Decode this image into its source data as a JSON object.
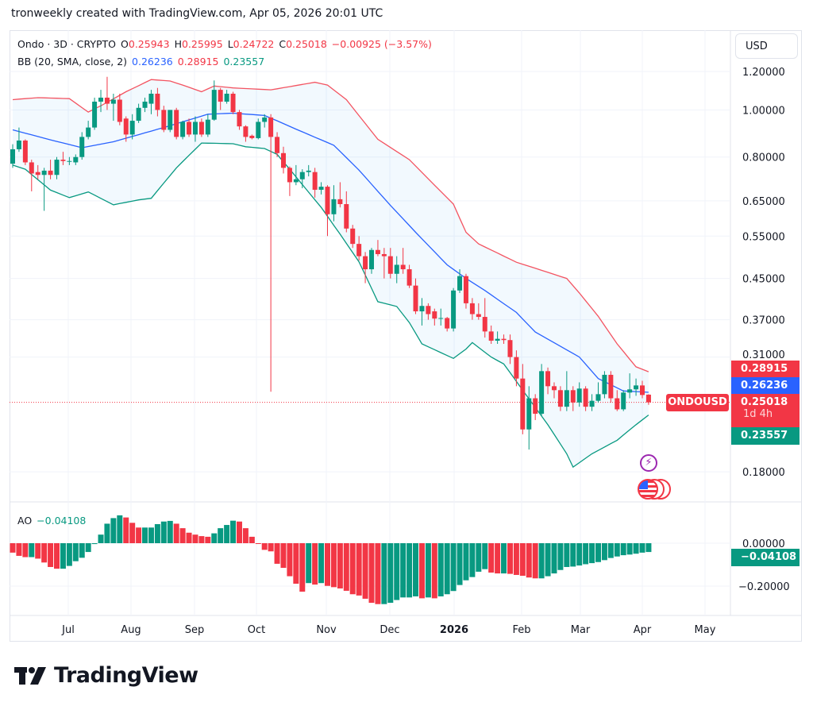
{
  "credit": "tronweekly created with TradingView.com, Apr 05, 2026 20:01 UTC",
  "legend": {
    "symbol": "Ondo · 3D · CRYPTO",
    "o_label": "O",
    "o": "0.25943",
    "h_label": "H",
    "h": "0.25995",
    "l_label": "L",
    "l": "0.24722",
    "c_label": "C",
    "c": "0.25018",
    "change": "−0.00925 (−3.57%)",
    "bb_label": "BB (20, SMA, close, 2)",
    "bb_basis": "0.26236",
    "bb_upper": "0.28915",
    "bb_lower": "0.23557",
    "ao_label": "AO",
    "ao_value": "−0.04108"
  },
  "currency_button": "USD",
  "symbol_label": "ONDOUSD",
  "badges": {
    "upper": "0.28915",
    "basis": "0.26236",
    "last": "0.25018",
    "countdown": "1d 4h",
    "lower": "0.23557",
    "ao": "−0.04108"
  },
  "icons": [
    "lightning-event-icon",
    "us-flag-event-icon"
  ],
  "colors": {
    "up": "#089981",
    "down": "#f23645",
    "bb_basis": "#2962ff",
    "bb_upper": "#f23645",
    "bb_lower": "#089981",
    "ao_up": "#089981",
    "ao_down": "#f23645"
  },
  "logo_text": "TradingView",
  "chart_data": [
    {
      "type": "candlestick",
      "title": "Ondo · 3D · CRYPTO",
      "y_scale": "log",
      "y_ticks": [
        "1.20000",
        "1.00000",
        "0.80000",
        "0.65000",
        "0.55000",
        "0.45000",
        "0.37000",
        "0.31000",
        "0.18000"
      ],
      "x_ticks": [
        "Jul",
        "Aug",
        "Sep",
        "Oct",
        "Nov",
        "Dec",
        "2026",
        "Feb",
        "Mar",
        "Apr",
        "May"
      ],
      "grid": true,
      "last_price": 0.25018,
      "ohlc": [
        [
          0.775,
          0.85,
          0.76,
          0.83
        ],
        [
          0.83,
          0.92,
          0.82,
          0.865
        ],
        [
          0.865,
          0.87,
          0.77,
          0.78
        ],
        [
          0.78,
          0.79,
          0.68,
          0.74
        ],
        [
          0.745,
          0.77,
          0.72,
          0.735
        ],
        [
          0.735,
          0.76,
          0.62,
          0.75
        ],
        [
          0.75,
          0.79,
          0.72,
          0.735
        ],
        [
          0.735,
          0.8,
          0.72,
          0.79
        ],
        [
          0.79,
          0.82,
          0.77,
          0.785
        ],
        [
          0.785,
          0.8,
          0.77,
          0.785
        ],
        [
          0.78,
          0.81,
          0.77,
          0.8
        ],
        [
          0.8,
          0.9,
          0.79,
          0.88
        ],
        [
          0.88,
          0.95,
          0.87,
          0.92
        ],
        [
          0.92,
          1.06,
          0.91,
          1.04
        ],
        [
          1.04,
          1.1,
          0.99,
          1.06
        ],
        [
          1.06,
          1.17,
          1.0,
          1.03
        ],
        [
          1.03,
          1.08,
          0.95,
          1.05
        ],
        [
          1.05,
          1.08,
          0.93,
          0.945
        ],
        [
          0.96,
          0.97,
          0.86,
          0.89
        ],
        [
          0.89,
          0.98,
          0.87,
          0.95
        ],
        [
          0.95,
          1.03,
          0.94,
          1.01
        ],
        [
          1.01,
          1.06,
          0.99,
          1.04
        ],
        [
          1.03,
          1.1,
          0.98,
          1.08
        ],
        [
          1.08,
          1.11,
          0.97,
          1.0
        ],
        [
          1.0,
          1.02,
          0.9,
          0.91
        ],
        [
          0.91,
          1.0,
          0.9,
          1.0
        ],
        [
          1.0,
          1.01,
          0.87,
          0.88
        ],
        [
          0.88,
          0.95,
          0.87,
          0.945
        ],
        [
          0.945,
          0.96,
          0.88,
          0.89
        ],
        [
          0.89,
          0.97,
          0.86,
          0.945
        ],
        [
          0.945,
          0.96,
          0.88,
          0.89
        ],
        [
          0.89,
          0.98,
          0.88,
          0.955
        ],
        [
          0.955,
          1.15,
          0.95,
          1.1
        ],
        [
          1.1,
          1.11,
          1.0,
          1.04
        ],
        [
          1.04,
          1.1,
          1.03,
          1.08
        ],
        [
          1.08,
          1.09,
          0.98,
          0.99
        ],
        [
          0.99,
          1.0,
          0.91,
          0.925
        ],
        [
          0.925,
          0.93,
          0.86,
          0.88
        ],
        [
          0.885,
          0.89,
          0.87,
          0.875
        ],
        [
          0.875,
          0.96,
          0.87,
          0.945
        ],
        [
          0.945,
          0.98,
          0.92,
          0.965
        ],
        [
          0.965,
          0.98,
          0.263,
          0.88
        ],
        [
          0.88,
          0.9,
          0.8,
          0.815
        ],
        [
          0.815,
          0.84,
          0.74,
          0.76
        ],
        [
          0.76,
          0.765,
          0.665,
          0.71
        ],
        [
          0.71,
          0.77,
          0.7,
          0.72
        ],
        [
          0.72,
          0.755,
          0.69,
          0.745
        ],
        [
          0.745,
          0.77,
          0.73,
          0.75
        ],
        [
          0.745,
          0.76,
          0.66,
          0.685
        ],
        [
          0.685,
          0.71,
          0.67,
          0.695
        ],
        [
          0.695,
          0.7,
          0.55,
          0.61
        ],
        [
          0.61,
          0.7,
          0.59,
          0.655
        ],
        [
          0.655,
          0.71,
          0.63,
          0.64
        ],
        [
          0.64,
          0.68,
          0.56,
          0.57
        ],
        [
          0.57,
          0.58,
          0.52,
          0.53
        ],
        [
          0.53,
          0.55,
          0.49,
          0.5
        ],
        [
          0.5,
          0.51,
          0.44,
          0.47
        ],
        [
          0.47,
          0.52,
          0.46,
          0.515
        ],
        [
          0.515,
          0.54,
          0.5,
          0.505
        ],
        [
          0.505,
          0.52,
          0.45,
          0.5
        ],
        [
          0.5,
          0.52,
          0.45,
          0.46
        ],
        [
          0.46,
          0.5,
          0.44,
          0.48
        ],
        [
          0.48,
          0.52,
          0.46,
          0.47
        ],
        [
          0.47,
          0.48,
          0.43,
          0.435
        ],
        [
          0.435,
          0.45,
          0.38,
          0.385
        ],
        [
          0.385,
          0.41,
          0.36,
          0.395
        ],
        [
          0.395,
          0.4,
          0.37,
          0.38
        ],
        [
          0.385,
          0.39,
          0.36,
          0.372
        ],
        [
          0.372,
          0.39,
          0.36,
          0.373
        ],
        [
          0.373,
          0.375,
          0.35,
          0.355
        ],
        [
          0.355,
          0.43,
          0.35,
          0.425
        ],
        [
          0.425,
          0.47,
          0.42,
          0.455
        ],
        [
          0.455,
          0.46,
          0.39,
          0.4
        ],
        [
          0.4,
          0.41,
          0.37,
          0.38
        ],
        [
          0.38,
          0.4,
          0.37,
          0.375
        ],
        [
          0.375,
          0.41,
          0.34,
          0.35
        ],
        [
          0.35,
          0.36,
          0.33,
          0.335
        ],
        [
          0.335,
          0.35,
          0.33,
          0.338
        ],
        [
          0.338,
          0.345,
          0.33,
          0.336
        ],
        [
          0.336,
          0.345,
          0.3,
          0.31
        ],
        [
          0.31,
          0.32,
          0.27,
          0.28
        ],
        [
          0.28,
          0.3,
          0.215,
          0.22
        ],
        [
          0.22,
          0.27,
          0.2,
          0.255
        ],
        [
          0.255,
          0.26,
          0.23,
          0.237
        ],
        [
          0.237,
          0.3,
          0.235,
          0.29
        ],
        [
          0.29,
          0.295,
          0.26,
          0.27
        ],
        [
          0.27,
          0.275,
          0.255,
          0.265
        ],
        [
          0.265,
          0.27,
          0.24,
          0.245
        ],
        [
          0.245,
          0.29,
          0.24,
          0.265
        ],
        [
          0.265,
          0.27,
          0.24,
          0.25
        ],
        [
          0.25,
          0.275,
          0.245,
          0.267
        ],
        [
          0.267,
          0.27,
          0.24,
          0.245
        ],
        [
          0.245,
          0.26,
          0.24,
          0.252
        ],
        [
          0.252,
          0.275,
          0.25,
          0.26
        ],
        [
          0.26,
          0.29,
          0.255,
          0.285
        ],
        [
          0.285,
          0.29,
          0.25,
          0.255
        ],
        [
          0.255,
          0.265,
          0.24,
          0.242
        ],
        [
          0.242,
          0.265,
          0.24,
          0.262
        ],
        [
          0.262,
          0.287,
          0.255,
          0.266
        ],
        [
          0.266,
          0.28,
          0.258,
          0.271
        ],
        [
          0.271,
          0.277,
          0.255,
          0.259
        ],
        [
          0.25943,
          0.25995,
          0.24722,
          0.25018
        ]
      ],
      "bollinger": {
        "upper": [
          [
            0,
            1.05
          ],
          [
            4,
            1.06
          ],
          [
            9,
            1.055
          ],
          [
            12,
            0.99
          ],
          [
            14,
            1.02
          ],
          [
            18,
            1.09
          ],
          [
            22,
            1.155
          ],
          [
            25,
            1.147
          ],
          [
            27,
            1.125
          ],
          [
            30,
            1.09
          ],
          [
            32,
            1.12
          ],
          [
            35,
            1.11
          ],
          [
            41,
            1.1
          ],
          [
            48,
            1.14
          ],
          [
            50,
            1.125
          ],
          [
            53,
            1.05
          ],
          [
            58,
            0.87
          ],
          [
            63,
            0.79
          ],
          [
            67,
            0.7
          ],
          [
            70,
            0.64
          ],
          [
            72,
            0.56
          ],
          [
            74,
            0.53
          ],
          [
            80,
            0.486
          ],
          [
            88,
            0.45
          ],
          [
            90,
            0.42
          ],
          [
            93,
            0.376
          ],
          [
            96,
            0.33
          ],
          [
            99,
            0.296
          ],
          [
            101,
            0.28915
          ]
        ],
        "basis": [
          [
            0,
            0.91
          ],
          [
            6,
            0.868
          ],
          [
            11,
            0.836
          ],
          [
            16,
            0.86
          ],
          [
            24,
            0.92
          ],
          [
            31,
            0.98
          ],
          [
            35,
            0.985
          ],
          [
            40,
            0.974
          ],
          [
            42,
            0.95
          ],
          [
            45,
            0.913
          ],
          [
            51,
            0.846
          ],
          [
            55,
            0.752
          ],
          [
            60,
            0.636
          ],
          [
            64,
            0.56
          ],
          [
            69,
            0.48
          ],
          [
            72,
            0.45
          ],
          [
            75,
            0.425
          ],
          [
            80,
            0.383
          ],
          [
            83,
            0.349
          ],
          [
            90,
            0.31
          ],
          [
            93,
            0.28
          ],
          [
            97,
            0.264
          ],
          [
            101,
            0.26236
          ]
        ],
        "lower": [
          [
            0,
            0.77
          ],
          [
            2,
            0.755
          ],
          [
            6,
            0.684
          ],
          [
            9,
            0.66
          ],
          [
            12,
            0.678
          ],
          [
            16,
            0.638
          ],
          [
            20,
            0.653
          ],
          [
            22,
            0.658
          ],
          [
            26,
            0.76
          ],
          [
            30,
            0.855
          ],
          [
            35,
            0.852
          ],
          [
            37,
            0.84
          ],
          [
            40,
            0.833
          ],
          [
            42,
            0.81
          ],
          [
            44,
            0.755
          ],
          [
            49,
            0.63
          ],
          [
            52,
            0.555
          ],
          [
            55,
            0.487
          ],
          [
            58,
            0.403
          ],
          [
            61,
            0.394
          ],
          [
            63,
            0.365
          ],
          [
            65,
            0.33
          ],
          [
            70,
            0.308
          ],
          [
            72,
            0.322
          ],
          [
            73,
            0.332
          ],
          [
            76,
            0.31
          ],
          [
            78,
            0.3
          ],
          [
            81,
            0.265
          ],
          [
            85,
            0.225
          ],
          [
            88,
            0.196
          ],
          [
            89,
            0.184
          ],
          [
            92,
            0.196
          ],
          [
            96,
            0.209
          ],
          [
            99,
            0.225
          ],
          [
            101,
            0.23557
          ]
        ]
      }
    },
    {
      "type": "bar",
      "title": "AO",
      "y_ticks": [
        "0.00000",
        "−0.20000"
      ],
      "values": [
        -0.044,
        -0.059,
        -0.065,
        -0.065,
        -0.072,
        -0.09,
        -0.111,
        -0.119,
        -0.119,
        -0.106,
        -0.084,
        -0.068,
        -0.041,
        -0.004,
        0.04,
        0.091,
        0.117,
        0.13,
        0.12,
        0.095,
        0.073,
        0.073,
        0.073,
        0.089,
        0.101,
        0.104,
        0.091,
        0.07,
        0.049,
        0.04,
        0.033,
        0.03,
        0.046,
        0.07,
        0.085,
        0.105,
        0.101,
        0.07,
        0.03,
        -0.001,
        -0.031,
        -0.038,
        -0.096,
        -0.115,
        -0.154,
        -0.189,
        -0.226,
        -0.186,
        -0.193,
        -0.186,
        -0.199,
        -0.205,
        -0.211,
        -0.222,
        -0.238,
        -0.244,
        -0.259,
        -0.278,
        -0.284,
        -0.284,
        -0.278,
        -0.265,
        -0.253,
        -0.253,
        -0.248,
        -0.257,
        -0.253,
        -0.257,
        -0.248,
        -0.238,
        -0.223,
        -0.195,
        -0.173,
        -0.158,
        -0.133,
        -0.121,
        -0.137,
        -0.141,
        -0.141,
        -0.143,
        -0.148,
        -0.152,
        -0.16,
        -0.164,
        -0.164,
        -0.154,
        -0.141,
        -0.125,
        -0.111,
        -0.109,
        -0.104,
        -0.098,
        -0.093,
        -0.088,
        -0.079,
        -0.069,
        -0.062,
        -0.056,
        -0.053,
        -0.049,
        -0.044,
        -0.04108
      ]
    }
  ]
}
